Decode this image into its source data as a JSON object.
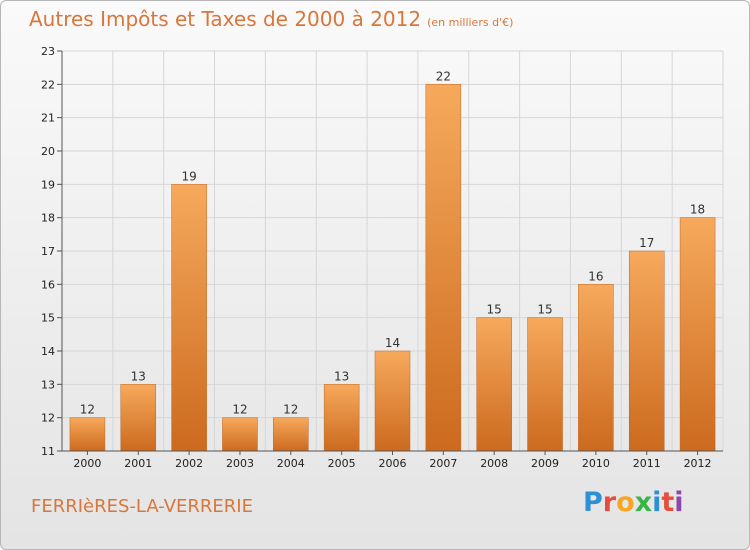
{
  "header": {
    "title": "Autres Impôts et Taxes de 2000 à 2012",
    "unit": "(en milliers d'€)"
  },
  "footer": {
    "town": "FERRIèRES-LA-VERRERIE",
    "logo": "Proxiti"
  },
  "colors": {
    "accent": "#d9763a",
    "bar_light": "#f6a95c",
    "bar_dark": "#cc6a1e"
  },
  "chart_data": {
    "type": "bar",
    "title": "Autres Impôts et Taxes de 2000 à 2012",
    "subtitle": "(en milliers d'€)",
    "xlabel": "",
    "ylabel": "",
    "categories": [
      "2000",
      "2001",
      "2002",
      "2003",
      "2004",
      "2005",
      "2006",
      "2007",
      "2008",
      "2009",
      "2010",
      "2011",
      "2012"
    ],
    "values": [
      12,
      13,
      19,
      12,
      12,
      13,
      14,
      22,
      15,
      15,
      16,
      17,
      18
    ],
    "data_labels": [
      "12",
      "13",
      "19",
      "12",
      "12",
      "13",
      "14",
      "22",
      "15",
      "15",
      "16",
      "17",
      "18"
    ],
    "ylim": [
      11,
      23
    ],
    "yticks": [
      11,
      12,
      13,
      14,
      15,
      16,
      17,
      18,
      19,
      20,
      21,
      22,
      23
    ],
    "grid": true
  }
}
